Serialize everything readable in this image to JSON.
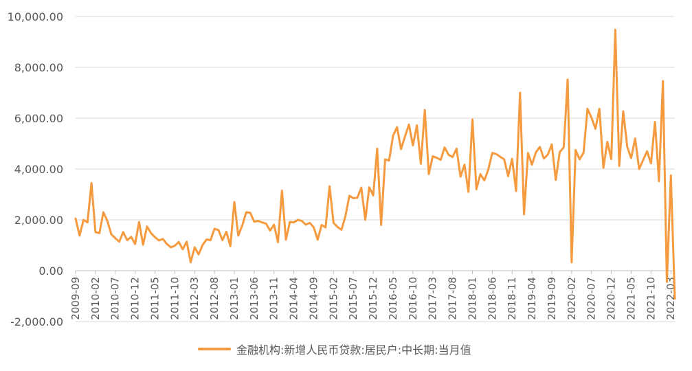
{
  "chart_data": {
    "type": "line",
    "title": "",
    "xlabel": "",
    "ylabel": "",
    "ylim": [
      -2000,
      10000
    ],
    "yticks": [
      -2000,
      0,
      2000,
      4000,
      6000,
      8000,
      10000
    ],
    "ytick_labels": [
      "-2,000.00",
      "0.00",
      "2,000.00",
      "4,000.00",
      "6,000.00",
      "8,000.00",
      "10,000.00"
    ],
    "xtick_labels": [
      "2009-09",
      "2010-02",
      "2010-07",
      "2010-12",
      "2011-05",
      "2011-10",
      "2012-03",
      "2012-08",
      "2013-01",
      "2013-06",
      "2013-11",
      "2014-04",
      "2014-09",
      "2015-02",
      "2015-07",
      "2015-12",
      "2016-05",
      "2016-10",
      "2017-03",
      "2017-08",
      "2018-01",
      "2018-06",
      "2018-11",
      "2019-04",
      "2019-09",
      "2020-02",
      "2020-07",
      "2020-12",
      "2021-05",
      "2021-10",
      "2022-03"
    ],
    "xtick_step": 5,
    "grid": "horizontal",
    "legend_position": "bottom",
    "series": [
      {
        "name": "金融机构:新增人民币贷款:居民户:中长期:当月值",
        "color": "#F59A3E",
        "start": "2009-09",
        "values": [
          2050,
          1380,
          2000,
          1900,
          3450,
          1520,
          1480,
          2300,
          1960,
          1430,
          1280,
          1140,
          1520,
          1200,
          1330,
          1050,
          1920,
          1020,
          1740,
          1480,
          1320,
          1190,
          1250,
          1050,
          920,
          980,
          1130,
          840,
          1140,
          330,
          920,
          640,
          1010,
          1230,
          1200,
          1650,
          1600,
          1200,
          1530,
          960,
          2700,
          1380,
          1780,
          2300,
          2280,
          1930,
          1960,
          1900,
          1850,
          1580,
          1810,
          1120,
          3150,
          1220,
          1920,
          1900,
          2000,
          1960,
          1810,
          1880,
          1710,
          1220,
          1800,
          1700,
          3320,
          1880,
          1720,
          1610,
          2150,
          2950,
          2850,
          2870,
          3270,
          2000,
          3280,
          2960,
          4800,
          1800,
          4380,
          4330,
          5310,
          5650,
          4780,
          5280,
          5750,
          4930,
          5720,
          4210,
          6320,
          3800,
          4500,
          4440,
          4360,
          4850,
          4560,
          4470,
          4800,
          3700,
          4170,
          3100,
          5950,
          3200,
          3800,
          3550,
          3980,
          4630,
          4590,
          4480,
          4380,
          3720,
          4400,
          3130,
          7000,
          2220,
          4630,
          4170,
          4660,
          4870,
          4410,
          4570,
          4970,
          3570,
          4670,
          4850,
          7520,
          330,
          4750,
          4380,
          4640,
          6370,
          6020,
          5580,
          6370,
          4050,
          5070,
          4390,
          9480,
          4120,
          6270,
          4880,
          4430,
          5200,
          4000,
          4350,
          4700,
          4220,
          5850,
          3520,
          7460,
          -440,
          3750,
          -1100
        ]
      }
    ]
  }
}
